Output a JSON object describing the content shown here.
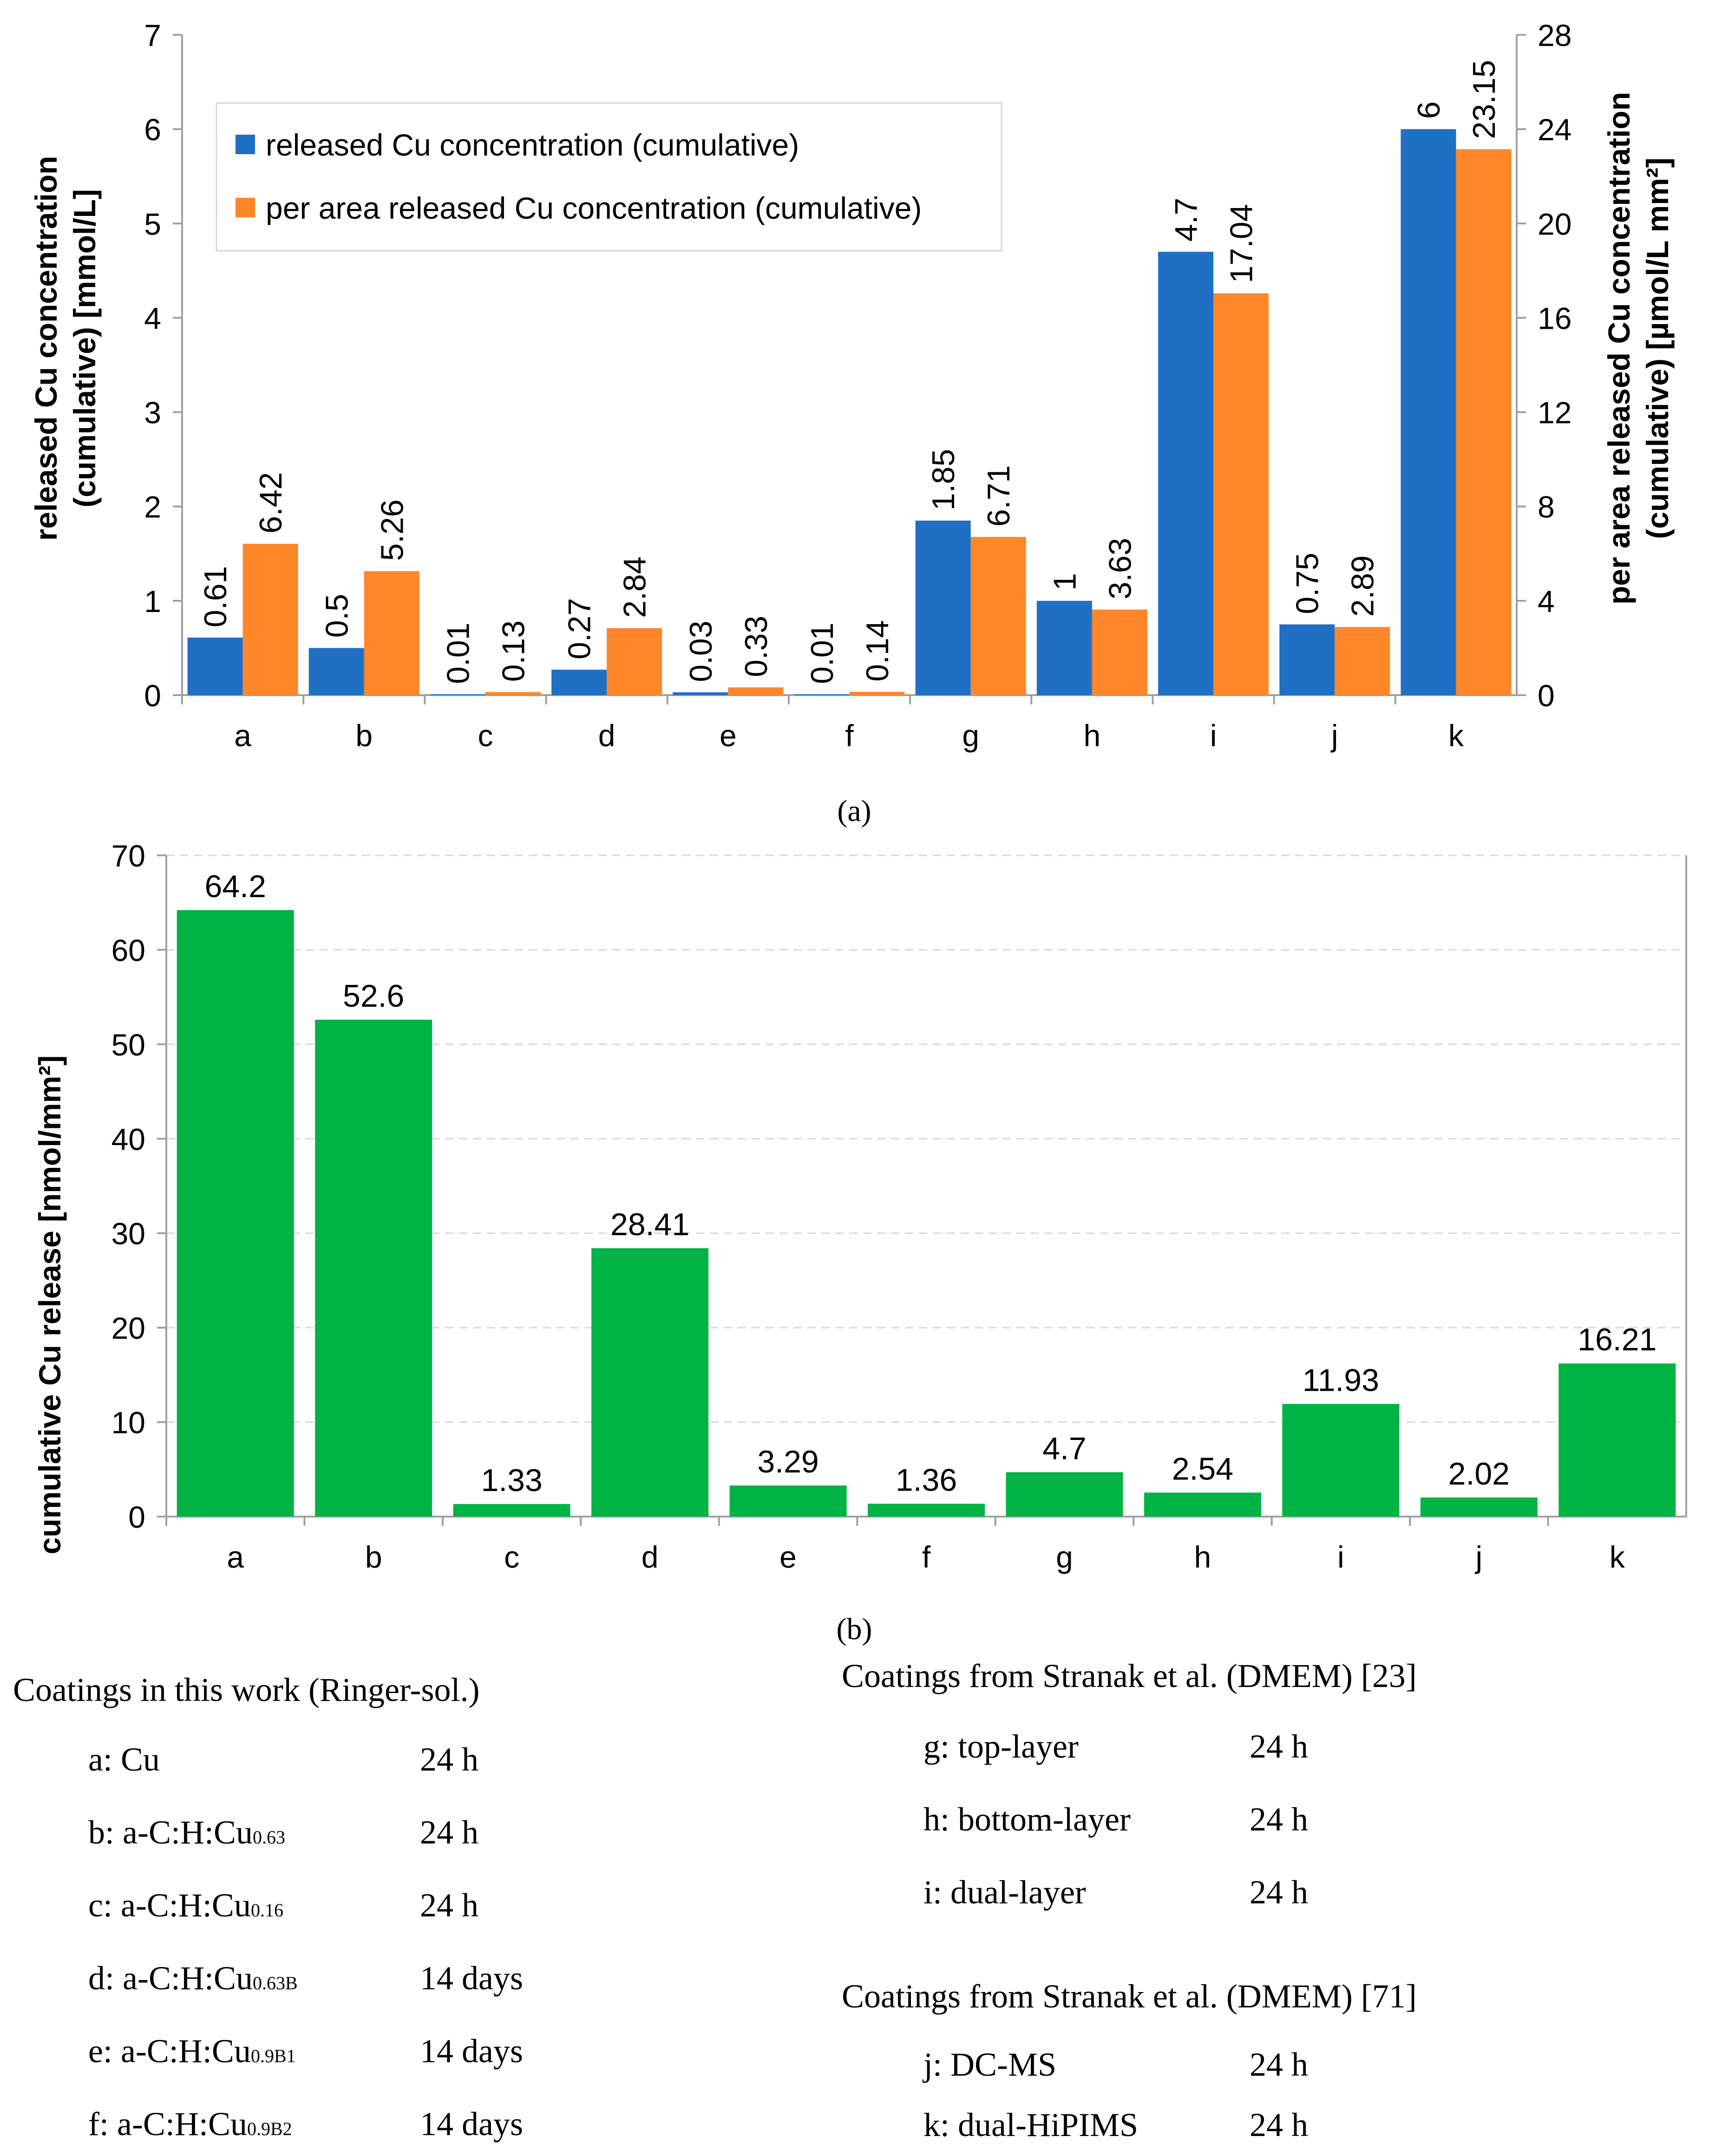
{
  "chart_data": [
    {
      "type": "bar",
      "panel_label": "(a)",
      "categories": [
        "a",
        "b",
        "c",
        "d",
        "e",
        "f",
        "g",
        "h",
        "i",
        "j",
        "k"
      ],
      "series": [
        {
          "name": "released Cu concentration (cumulative)",
          "axis": "left",
          "color": "#1f6fc5",
          "values": [
            0.61,
            0.5,
            0.01,
            0.27,
            0.03,
            0.01,
            1.85,
            1,
            4.7,
            0.75,
            6
          ],
          "labels": [
            "0.61",
            "0.5",
            "0.01",
            "0.27",
            "0.03",
            "0.01",
            "1.85",
            "1",
            "4.7",
            "0.75",
            "6"
          ]
        },
        {
          "name": "per area released Cu concentration (cumulative)",
          "axis": "right",
          "color": "#ff8629",
          "values": [
            6.42,
            5.26,
            0.13,
            2.84,
            0.33,
            0.14,
            6.71,
            3.63,
            17.04,
            2.89,
            23.15
          ],
          "labels": [
            "6.42",
            "5.26",
            "0.13",
            "2.84",
            "0.33",
            "0.14",
            "6.71",
            "3.63",
            "17.04",
            "2.89",
            "23.15"
          ]
        }
      ],
      "ylabel": "released Cu concentration (cumulative) [mmol/L]",
      "ylabel_lines": [
        "released Cu concentration",
        "(cumulative) [mmol/L]"
      ],
      "ylim": [
        0,
        7
      ],
      "yticks": [
        0,
        1,
        2,
        3,
        4,
        5,
        6,
        7
      ],
      "y2label": "per area released Cu concentration (cumulative) [µmol/L mm²]",
      "y2label_lines": [
        "per area released Cu concentration",
        "(cumulative) [µmol/L mm²]"
      ],
      "y2lim": [
        0,
        28
      ],
      "y2ticks": [
        0,
        4,
        8,
        12,
        16,
        20,
        24,
        28
      ],
      "legend_position": "top-left",
      "grid": false
    },
    {
      "type": "bar",
      "panel_label": "(b)",
      "categories": [
        "a",
        "b",
        "c",
        "d",
        "e",
        "f",
        "g",
        "h",
        "i",
        "j",
        "k"
      ],
      "series": [
        {
          "name": "cumulative Cu release",
          "color": "#00b345",
          "values": [
            64.2,
            52.6,
            1.33,
            28.41,
            3.29,
            1.36,
            4.7,
            2.54,
            11.93,
            2.02,
            16.21
          ],
          "labels": [
            "64.2",
            "52.6",
            "1.33",
            "28.41",
            "3.29",
            "1.36",
            "4.7",
            "2.54",
            "11.93",
            "2.02",
            "16.21"
          ]
        }
      ],
      "ylabel": "cumulative Cu release [nmol/mm²]",
      "ylim": [
        0,
        70
      ],
      "yticks": [
        0,
        10,
        20,
        30,
        40,
        50,
        60,
        70
      ],
      "grid": true
    }
  ],
  "key": {
    "left": {
      "heading": "Coatings in this work (Ringer-sol.)",
      "items": [
        {
          "name": "a: Cu",
          "sub": "",
          "time": "24 h"
        },
        {
          "name": "b: a-C:H:Cu",
          "sub": "0.63",
          "time": "24 h"
        },
        {
          "name": "c: a-C:H:Cu",
          "sub": "0.16",
          "time": "24 h"
        },
        {
          "name": "d: a-C:H:Cu",
          "sub": "0.63B",
          "time": "14 days"
        },
        {
          "name": "e: a-C:H:Cu",
          "sub": "0.9B1",
          "time": "14 days"
        },
        {
          "name": "f: a-C:H:Cu",
          "sub": "0.9B2",
          "time": "14 days"
        }
      ]
    },
    "right_top": {
      "heading": "Coatings from Stranak et al. (DMEM) [23]",
      "items": [
        {
          "name": "g: top-layer",
          "time": "24 h"
        },
        {
          "name": "h: bottom-layer",
          "time": "24 h"
        },
        {
          "name": "i: dual-layer",
          "time": "24 h"
        }
      ]
    },
    "right_bottom": {
      "heading": "Coatings from Stranak et al. (DMEM) [71]",
      "items": [
        {
          "name": "j: DC-MS",
          "time": "24 h"
        },
        {
          "name": "k: dual-HiPIMS",
          "time": "24 h"
        }
      ]
    }
  }
}
